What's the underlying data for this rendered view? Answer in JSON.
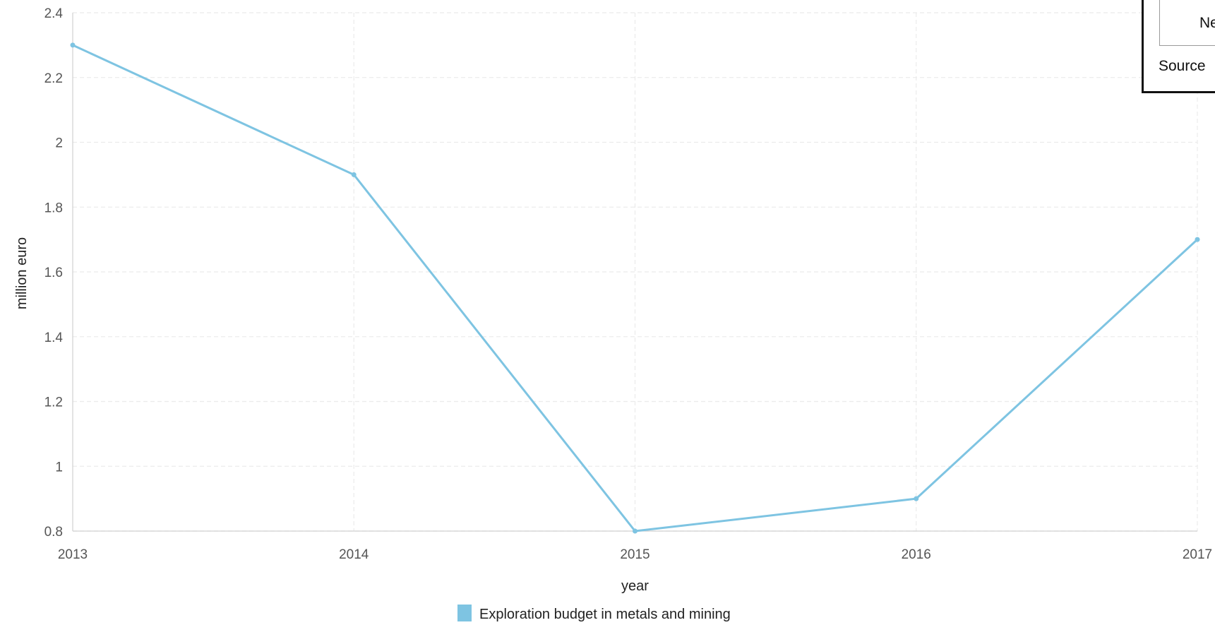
{
  "chart_data": {
    "type": "line",
    "xlabel": "year",
    "ylabel": "million euro",
    "categories": [
      "2013",
      "2014",
      "2015",
      "2016",
      "2017"
    ],
    "x": [
      2013,
      2014,
      2015,
      2016,
      2017
    ],
    "ylim": [
      0.8,
      2.4
    ],
    "yticks": [
      "0.8",
      "1",
      "1.2",
      "1.4",
      "1.6",
      "1.8",
      "2",
      "2.2",
      "2.4"
    ],
    "grid": true,
    "legend_position": "bottom-center",
    "series": [
      {
        "name": "Exploration budget in metals and mining",
        "values": [
          2.3,
          1.9,
          0.8,
          0.9,
          1.7
        ],
        "color": "#7ec4e2"
      }
    ]
  },
  "overlay": {
    "tab_text": "Net",
    "source_text": "Source"
  },
  "colors": {
    "series": "#7ec4e2",
    "grid": "#ebebeb",
    "axis": "#d0d0d0",
    "tick_text": "#555555"
  }
}
